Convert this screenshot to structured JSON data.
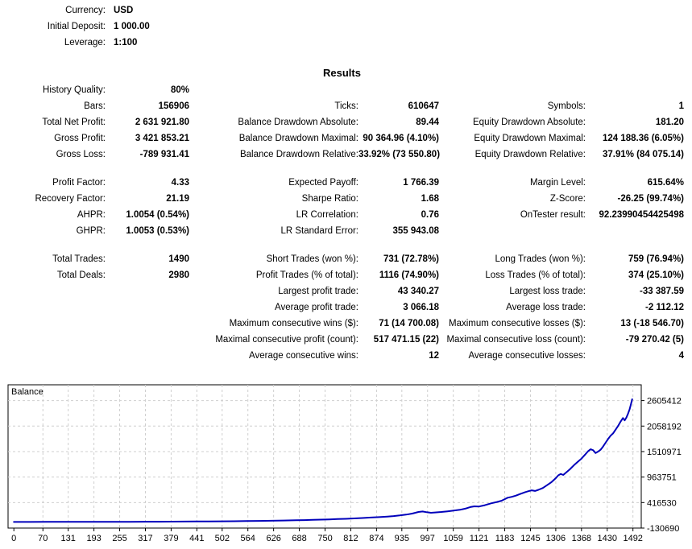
{
  "header": {
    "info": [
      {
        "label": "Currency:",
        "value": "USD"
      },
      {
        "label": "Initial Deposit:",
        "value": "1 000.00"
      },
      {
        "label": "Leverage:",
        "value": "1:100"
      }
    ],
    "title": "Results"
  },
  "results": {
    "rows": [
      {
        "cells": [
          "History Quality:",
          "80%",
          "",
          "",
          "",
          ""
        ]
      },
      {
        "cells": [
          "Bars:",
          "156906",
          "Ticks:",
          "610647",
          "Symbols:",
          "1"
        ]
      },
      {
        "cells": [
          "Total Net Profit:",
          "2 631 921.80",
          "Balance Drawdown Absolute:",
          "89.44",
          "Equity Drawdown Absolute:",
          "181.20"
        ]
      },
      {
        "cells": [
          "Gross Profit:",
          "3 421 853.21",
          "Balance Drawdown Maximal:",
          "90 364.96 (4.10%)",
          "Equity Drawdown Maximal:",
          "124 188.36 (6.05%)"
        ]
      },
      {
        "cells": [
          "Gross Loss:",
          "-789 931.41",
          "Balance Drawdown Relative:",
          "33.92% (73 550.80)",
          "Equity Drawdown Relative:",
          "37.91% (84 075.14)"
        ]
      },
      {
        "gap": true
      },
      {
        "cells": [
          "Profit Factor:",
          "4.33",
          "Expected Payoff:",
          "1 766.39",
          "Margin Level:",
          "615.64%"
        ]
      },
      {
        "cells": [
          "Recovery Factor:",
          "21.19",
          "Sharpe Ratio:",
          "1.68",
          "Z-Score:",
          "-26.25 (99.74%)"
        ]
      },
      {
        "cells": [
          "AHPR:",
          "1.0054 (0.54%)",
          "LR Correlation:",
          "0.76",
          "OnTester result:",
          "92.23990454425498"
        ]
      },
      {
        "cells": [
          "GHPR:",
          "1.0053 (0.53%)",
          "LR Standard Error:",
          "355 943.08",
          "",
          ""
        ]
      },
      {
        "gap": true
      },
      {
        "cells": [
          "Total Trades:",
          "1490",
          "Short Trades (won %):",
          "731 (72.78%)",
          "Long Trades (won %):",
          "759 (76.94%)"
        ]
      },
      {
        "cells": [
          "Total Deals:",
          "2980",
          "Profit Trades (% of total):",
          "1116 (74.90%)",
          "Loss Trades (% of total):",
          "374 (25.10%)"
        ]
      },
      {
        "cells": [
          "",
          "",
          "Largest profit trade:",
          "43 340.27",
          "Largest loss trade:",
          "-33 387.59"
        ]
      },
      {
        "cells": [
          "",
          "",
          "Average profit trade:",
          "3 066.18",
          "Average loss trade:",
          "-2 112.12"
        ]
      },
      {
        "cells": [
          "",
          "",
          "Maximum consecutive wins ($):",
          "71 (14 700.08)",
          "Maximum consecutive losses ($):",
          "13 (-18 546.70)"
        ]
      },
      {
        "cells": [
          "",
          "",
          "Maximal consecutive profit (count):",
          "517 471.15 (22)",
          "Maximal consecutive loss (count):",
          "-79 270.42 (5)"
        ]
      },
      {
        "cells": [
          "",
          "",
          "Average consecutive wins:",
          "12",
          "Average consecutive losses:",
          "4"
        ]
      }
    ]
  },
  "chart_data": {
    "type": "line",
    "title": "Balance",
    "xlabel": "",
    "ylabel": "",
    "x_ticks": [
      0,
      70,
      131,
      193,
      255,
      317,
      379,
      441,
      502,
      564,
      626,
      688,
      750,
      812,
      874,
      935,
      997,
      1059,
      1121,
      1183,
      1245,
      1306,
      1368,
      1430,
      1492
    ],
    "y_ticks": [
      -130690,
      416530,
      963751,
      1510971,
      2058192,
      2605412
    ],
    "xlim": [
      -14,
      1512
    ],
    "ylim": [
      -130690,
      2944154
    ],
    "grid": true,
    "legend_position": "none",
    "line_color": "#0000bb",
    "grid_color": "#cfcfcf",
    "border_color": "#000000",
    "series": [
      {
        "name": "Balance",
        "points": [
          [
            0,
            1000
          ],
          [
            40,
            1230
          ],
          [
            80,
            1520
          ],
          [
            120,
            1900
          ],
          [
            160,
            2330
          ],
          [
            200,
            2900
          ],
          [
            240,
            3600
          ],
          [
            280,
            4450
          ],
          [
            317,
            5400
          ],
          [
            350,
            6500
          ],
          [
            380,
            7600
          ],
          [
            410,
            8900
          ],
          [
            440,
            10500
          ],
          [
            470,
            12300
          ],
          [
            502,
            14300
          ],
          [
            530,
            16600
          ],
          [
            560,
            19500
          ],
          [
            590,
            22700
          ],
          [
            620,
            26500
          ],
          [
            650,
            31000
          ],
          [
            680,
            36200
          ],
          [
            700,
            40400
          ],
          [
            720,
            45000
          ],
          [
            740,
            50500
          ],
          [
            760,
            56500
          ],
          [
            780,
            63000
          ],
          [
            800,
            68500
          ],
          [
            820,
            76000
          ],
          [
            840,
            85000
          ],
          [
            860,
            95000
          ],
          [
            880,
            104000
          ],
          [
            900,
            116000
          ],
          [
            915,
            126000
          ],
          [
            930,
            140000
          ],
          [
            945,
            158000
          ],
          [
            960,
            180000
          ],
          [
            975,
            215000
          ],
          [
            985,
            225000
          ],
          [
            995,
            210000
          ],
          [
            1005,
            198000
          ],
          [
            1015,
            205000
          ],
          [
            1030,
            215000
          ],
          [
            1045,
            228000
          ],
          [
            1060,
            245000
          ],
          [
            1075,
            262000
          ],
          [
            1090,
            290000
          ],
          [
            1100,
            320000
          ],
          [
            1110,
            335000
          ],
          [
            1120,
            330000
          ],
          [
            1135,
            360000
          ],
          [
            1150,
            400000
          ],
          [
            1165,
            430000
          ],
          [
            1175,
            455000
          ],
          [
            1183,
            490000
          ],
          [
            1190,
            520000
          ],
          [
            1200,
            540000
          ],
          [
            1210,
            565000
          ],
          [
            1220,
            600000
          ],
          [
            1232,
            640000
          ],
          [
            1240,
            660000
          ],
          [
            1248,
            680000
          ],
          [
            1256,
            665000
          ],
          [
            1264,
            690000
          ],
          [
            1275,
            730000
          ],
          [
            1285,
            790000
          ],
          [
            1295,
            850000
          ],
          [
            1306,
            940000
          ],
          [
            1312,
            1000000
          ],
          [
            1318,
            1030000
          ],
          [
            1324,
            1010000
          ],
          [
            1332,
            1070000
          ],
          [
            1340,
            1130000
          ],
          [
            1350,
            1220000
          ],
          [
            1360,
            1300000
          ],
          [
            1368,
            1360000
          ],
          [
            1376,
            1440000
          ],
          [
            1384,
            1520000
          ],
          [
            1390,
            1560000
          ],
          [
            1396,
            1540000
          ],
          [
            1402,
            1480000
          ],
          [
            1408,
            1510000
          ],
          [
            1414,
            1550000
          ],
          [
            1420,
            1620000
          ],
          [
            1426,
            1700000
          ],
          [
            1432,
            1780000
          ],
          [
            1438,
            1850000
          ],
          [
            1444,
            1900000
          ],
          [
            1450,
            1980000
          ],
          [
            1456,
            2060000
          ],
          [
            1462,
            2150000
          ],
          [
            1468,
            2230000
          ],
          [
            1472,
            2180000
          ],
          [
            1476,
            2240000
          ],
          [
            1480,
            2320000
          ],
          [
            1484,
            2420000
          ],
          [
            1487,
            2520000
          ],
          [
            1490,
            2632922
          ]
        ]
      }
    ]
  }
}
